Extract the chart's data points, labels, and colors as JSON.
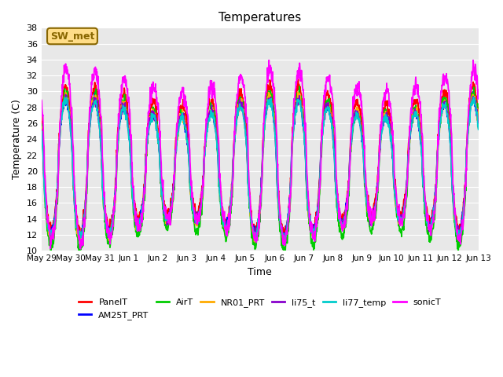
{
  "title": "Temperatures",
  "xlabel": "Time",
  "ylabel": "Temperature (C)",
  "ylim": [
    10,
    38
  ],
  "yticks": [
    10,
    12,
    14,
    16,
    18,
    20,
    22,
    24,
    26,
    28,
    30,
    32,
    34,
    36,
    38
  ],
  "bg_color": "#e8e8e8",
  "fig_color": "#ffffff",
  "annotation_text": "SW_met",
  "annotation_bg": "#ffdd88",
  "annotation_border": "#886600",
  "series": [
    "PanelT",
    "AM25T_PRT",
    "AirT",
    "NR01_PRT",
    "li75_t",
    "li77_temp",
    "sonicT"
  ],
  "colors": {
    "PanelT": "#ff0000",
    "AM25T_PRT": "#0000ff",
    "AirT": "#00cc00",
    "NR01_PRT": "#ffaa00",
    "li75_t": "#8800cc",
    "li77_temp": "#00cccc",
    "sonicT": "#ff00ff"
  },
  "start_day": 0,
  "n_days": 15,
  "dt_hours": 0.25,
  "tick_labels": [
    "May 29",
    "May 30",
    "May 31",
    "Jun 1",
    "Jun 2",
    "Jun 3",
    "Jun 4",
    "Jun 5",
    "Jun 6",
    "Jun 7",
    "Jun 8",
    "Jun 9",
    "Jun 10",
    "Jun 11",
    "Jun 12",
    "Jun 13"
  ],
  "tick_positions": [
    0,
    1,
    2,
    3,
    4,
    5,
    6,
    7,
    8,
    9,
    10,
    11,
    12,
    13,
    14,
    15
  ]
}
